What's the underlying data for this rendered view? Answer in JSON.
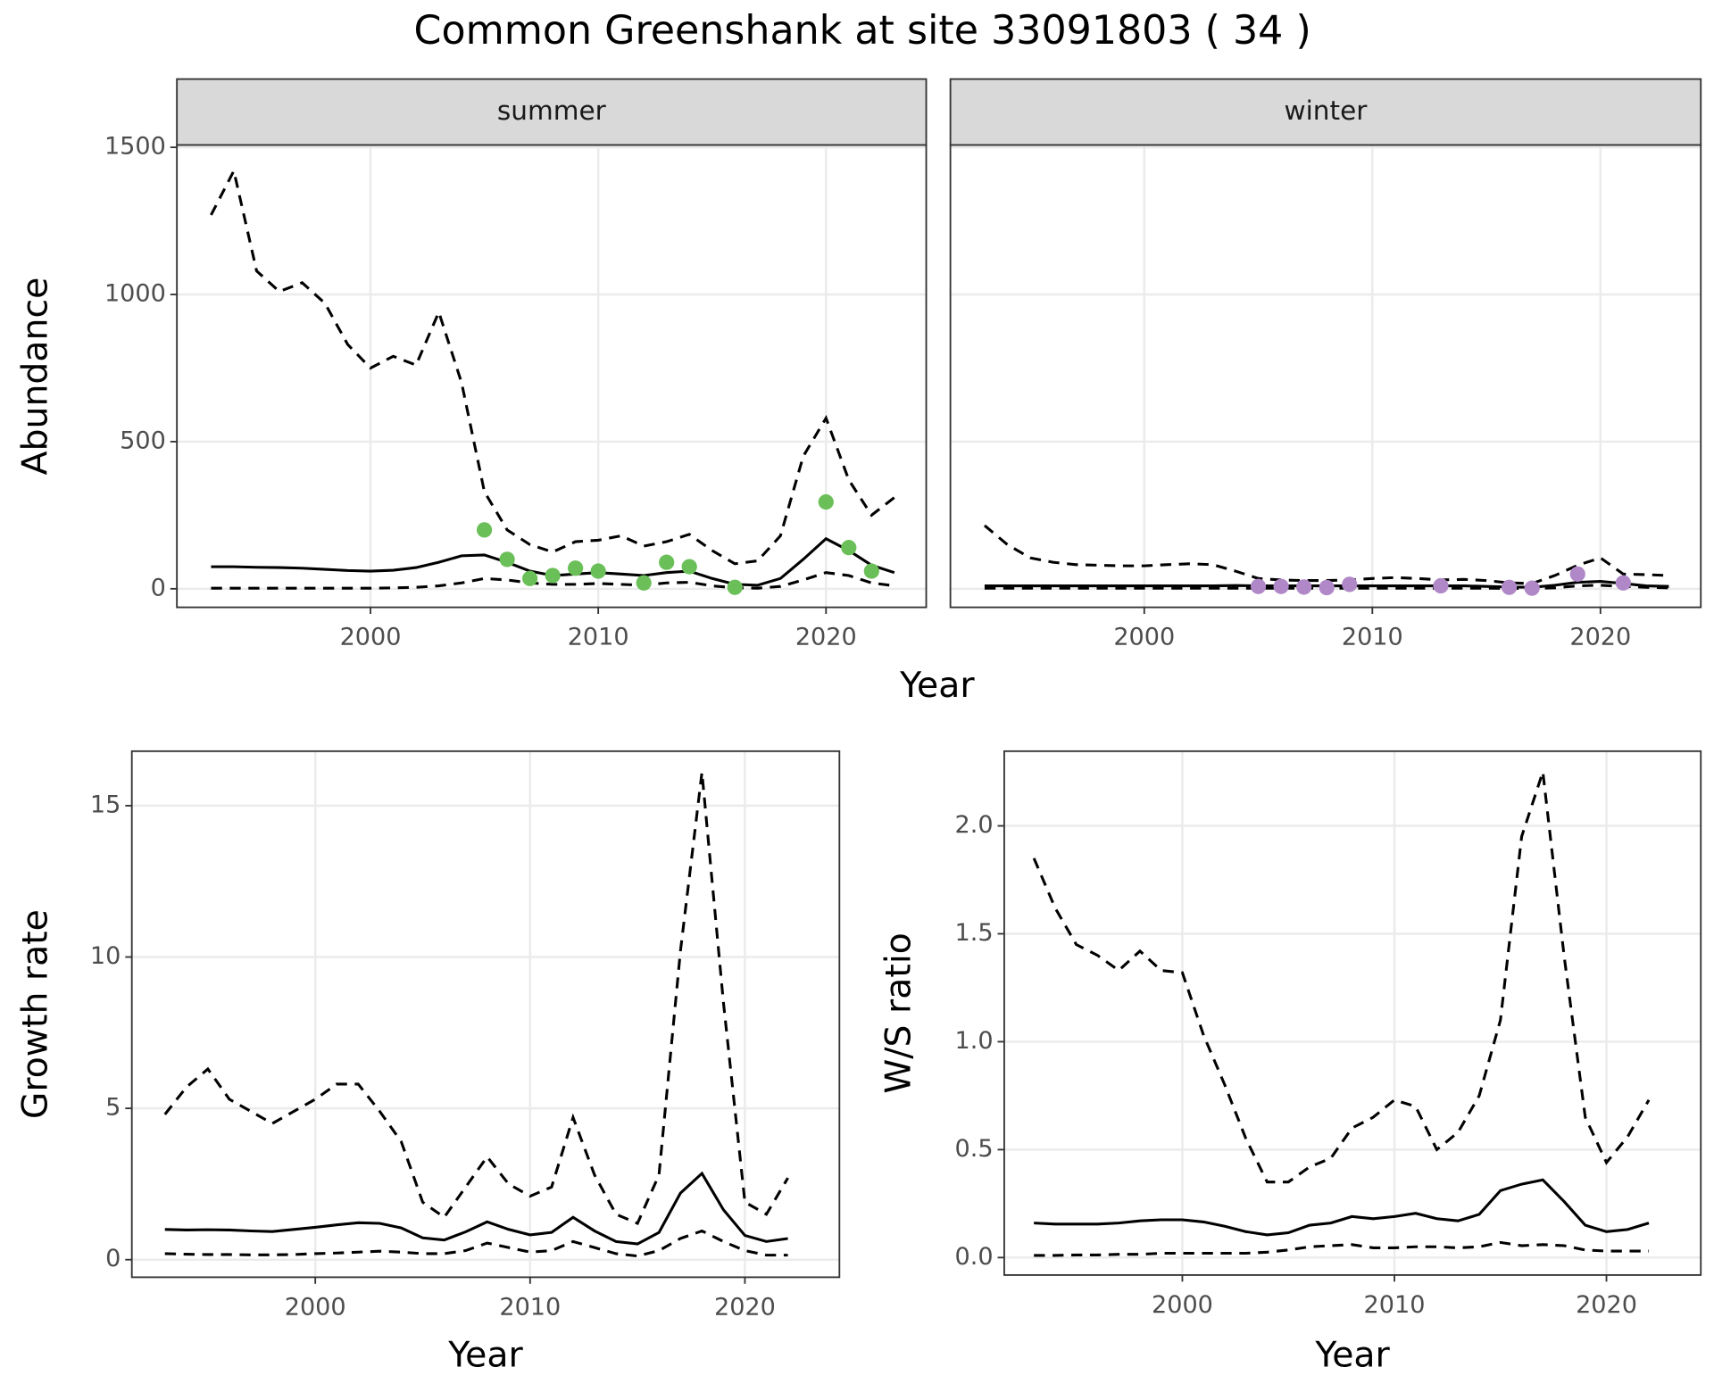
{
  "title": "Common Greenshank at site 33091803 ( 34 )",
  "chart_data": [
    {
      "type": "line",
      "facet": "summer",
      "ylabel": "Abundance",
      "xlabel": "Year",
      "grid": true,
      "xlim": [
        1991.5,
        2024.4
      ],
      "ylim": [
        -63,
        1508
      ],
      "xticks": [
        2000,
        2010,
        2020
      ],
      "yticks": [
        0,
        500,
        1000,
        1500
      ],
      "x": [
        1993,
        1994,
        1995,
        1996,
        1997,
        1998,
        1999,
        2000,
        2001,
        2002,
        2003,
        2004,
        2005,
        2006,
        2007,
        2008,
        2009,
        2010,
        2011,
        2012,
        2013,
        2014,
        2015,
        2016,
        2017,
        2018,
        2019,
        2020,
        2021,
        2022,
        2023
      ],
      "series": [
        {
          "style": "dashed",
          "color": "#000000",
          "values": [
            2,
            2,
            2,
            2,
            2,
            2,
            2,
            2,
            3,
            5,
            10,
            20,
            35,
            30,
            20,
            15,
            15,
            18,
            15,
            12,
            20,
            22,
            10,
            3,
            2,
            8,
            30,
            55,
            45,
            20,
            10
          ]
        },
        {
          "style": "dashed",
          "color": "#000000",
          "values": [
            1270,
            1420,
            1080,
            1010,
            1040,
            970,
            830,
            750,
            790,
            760,
            940,
            700,
            330,
            200,
            150,
            125,
            160,
            165,
            180,
            145,
            160,
            185,
            130,
            85,
            95,
            180,
            450,
            580,
            370,
            250,
            310
          ]
        },
        {
          "style": "solid",
          "color": "#000000",
          "values": [
            75,
            75,
            73,
            72,
            70,
            66,
            62,
            60,
            63,
            72,
            90,
            112,
            115,
            90,
            60,
            45,
            50,
            55,
            50,
            45,
            55,
            60,
            35,
            15,
            12,
            35,
            100,
            170,
            130,
            80,
            55
          ]
        },
        {
          "style": "points",
          "color": "#6bbf59",
          "values": [
            null,
            null,
            null,
            null,
            null,
            null,
            null,
            null,
            null,
            null,
            null,
            null,
            200,
            100,
            35,
            45,
            70,
            60,
            null,
            20,
            90,
            75,
            null,
            5,
            null,
            null,
            null,
            295,
            140,
            60,
            null
          ]
        }
      ]
    },
    {
      "type": "line",
      "facet": "winter",
      "grid": true,
      "xlim": [
        1991.5,
        2024.4
      ],
      "ylim": [
        -63,
        1508
      ],
      "xticks": [
        2000,
        2010,
        2020
      ],
      "x": [
        1993,
        1994,
        1995,
        1996,
        1997,
        1998,
        1999,
        2000,
        2001,
        2002,
        2003,
        2004,
        2005,
        2006,
        2007,
        2008,
        2009,
        2010,
        2011,
        2012,
        2013,
        2014,
        2015,
        2016,
        2017,
        2018,
        2019,
        2020,
        2021,
        2022,
        2023
      ],
      "series": [
        {
          "style": "dashed",
          "color": "#000000",
          "values": [
            2,
            2,
            2,
            2,
            2,
            2,
            2,
            2,
            2,
            2,
            2,
            2,
            2,
            2,
            2,
            2,
            2,
            2,
            2,
            2,
            2,
            2,
            2,
            1,
            1,
            3,
            10,
            12,
            8,
            5,
            3
          ]
        },
        {
          "style": "dashed",
          "color": "#000000",
          "values": [
            215,
            150,
            105,
            90,
            82,
            80,
            78,
            78,
            82,
            85,
            82,
            60,
            35,
            30,
            28,
            28,
            30,
            35,
            38,
            35,
            30,
            32,
            28,
            20,
            18,
            45,
            80,
            105,
            50,
            48,
            45
          ]
        },
        {
          "style": "solid",
          "color": "#000000",
          "values": [
            10,
            10,
            10,
            10,
            10,
            10,
            10,
            10,
            10,
            10,
            10,
            11,
            10,
            10,
            10,
            10,
            10,
            10,
            10,
            10,
            10,
            10,
            8,
            6,
            5,
            12,
            22,
            25,
            18,
            10,
            8
          ]
        },
        {
          "style": "points",
          "color": "#b088c8",
          "values": [
            null,
            null,
            null,
            null,
            null,
            null,
            null,
            null,
            null,
            null,
            null,
            null,
            8,
            8,
            6,
            4,
            15,
            null,
            null,
            null,
            10,
            null,
            null,
            5,
            2,
            null,
            50,
            null,
            20,
            null,
            null
          ]
        }
      ]
    },
    {
      "type": "line",
      "ylabel": "Growth rate",
      "xlabel": "Year",
      "grid": true,
      "xlim": [
        1991.46,
        2024.4
      ],
      "ylim": [
        -0.58,
        16.8
      ],
      "xticks": [
        2000,
        2010,
        2020
      ],
      "yticks": [
        0,
        5,
        10,
        15
      ],
      "x": [
        1993,
        1994,
        1995,
        1996,
        1997,
        1998,
        1999,
        2000,
        2001,
        2002,
        2003,
        2004,
        2005,
        2006,
        2007,
        2008,
        2009,
        2010,
        2011,
        2012,
        2013,
        2014,
        2015,
        2016,
        2017,
        2018,
        2019,
        2020,
        2021,
        2022
      ],
      "series": [
        {
          "style": "dashed",
          "color": "#000000",
          "values": [
            0.2,
            0.18,
            0.17,
            0.17,
            0.16,
            0.16,
            0.17,
            0.2,
            0.22,
            0.25,
            0.28,
            0.25,
            0.2,
            0.2,
            0.3,
            0.55,
            0.4,
            0.25,
            0.3,
            0.6,
            0.4,
            0.2,
            0.12,
            0.3,
            0.7,
            0.95,
            0.6,
            0.3,
            0.15,
            0.15
          ]
        },
        {
          "style": "dashed",
          "color": "#000000",
          "values": [
            4.8,
            5.7,
            6.3,
            5.3,
            4.9,
            4.5,
            4.9,
            5.3,
            5.8,
            5.8,
            4.9,
            3.9,
            1.9,
            1.4,
            2.4,
            3.4,
            2.5,
            2.1,
            2.4,
            4.7,
            2.8,
            1.5,
            1.2,
            2.8,
            10.2,
            16.1,
            8.5,
            1.9,
            1.5,
            2.7
          ]
        },
        {
          "style": "solid",
          "color": "#000000",
          "values": [
            1.0,
            0.98,
            0.99,
            0.98,
            0.95,
            0.93,
            1.0,
            1.07,
            1.15,
            1.22,
            1.2,
            1.05,
            0.72,
            0.65,
            0.92,
            1.25,
            1.0,
            0.82,
            0.9,
            1.4,
            0.95,
            0.6,
            0.52,
            0.9,
            2.2,
            2.85,
            1.65,
            0.8,
            0.6,
            0.7
          ]
        }
      ]
    },
    {
      "type": "line",
      "ylabel": "W/S ratio",
      "xlabel": "Year",
      "grid": true,
      "xlim": [
        1991.6,
        2024.45
      ],
      "ylim": [
        -0.081,
        2.346
      ],
      "xticks": [
        2000,
        2010,
        2020
      ],
      "yticks": [
        {
          "value": 0,
          "label": "0.0"
        },
        0.5,
        {
          "value": 1,
          "label": "1.0"
        },
        1.5,
        {
          "value": 2,
          "label": "2.0"
        }
      ],
      "x": [
        1993,
        1994,
        1995,
        1996,
        1997,
        1998,
        1999,
        2000,
        2001,
        2002,
        2003,
        2004,
        2005,
        2006,
        2007,
        2008,
        2009,
        2010,
        2011,
        2012,
        2013,
        2014,
        2015,
        2016,
        2017,
        2018,
        2019,
        2020,
        2021,
        2022
      ],
      "series": [
        {
          "style": "dashed",
          "color": "#000000",
          "values": [
            0.01,
            0.01,
            0.012,
            0.012,
            0.015,
            0.015,
            0.02,
            0.02,
            0.02,
            0.02,
            0.02,
            0.025,
            0.035,
            0.05,
            0.055,
            0.06,
            0.045,
            0.045,
            0.05,
            0.05,
            0.045,
            0.05,
            0.07,
            0.055,
            0.06,
            0.055,
            0.035,
            0.03,
            0.03,
            0.03
          ]
        },
        {
          "style": "dashed",
          "color": "#000000",
          "values": [
            1.85,
            1.62,
            1.45,
            1.4,
            1.33,
            1.42,
            1.33,
            1.32,
            1.03,
            0.8,
            0.55,
            0.35,
            0.35,
            0.42,
            0.46,
            0.6,
            0.65,
            0.73,
            0.7,
            0.5,
            0.58,
            0.75,
            1.1,
            1.95,
            2.25,
            1.4,
            0.65,
            0.44,
            0.56,
            0.73
          ]
        },
        {
          "style": "solid",
          "color": "#000000",
          "values": [
            0.16,
            0.155,
            0.155,
            0.155,
            0.16,
            0.17,
            0.175,
            0.175,
            0.165,
            0.145,
            0.12,
            0.105,
            0.115,
            0.15,
            0.16,
            0.19,
            0.18,
            0.19,
            0.205,
            0.18,
            0.17,
            0.2,
            0.31,
            0.34,
            0.36,
            0.26,
            0.15,
            0.12,
            0.13,
            0.16
          ]
        }
      ]
    }
  ]
}
